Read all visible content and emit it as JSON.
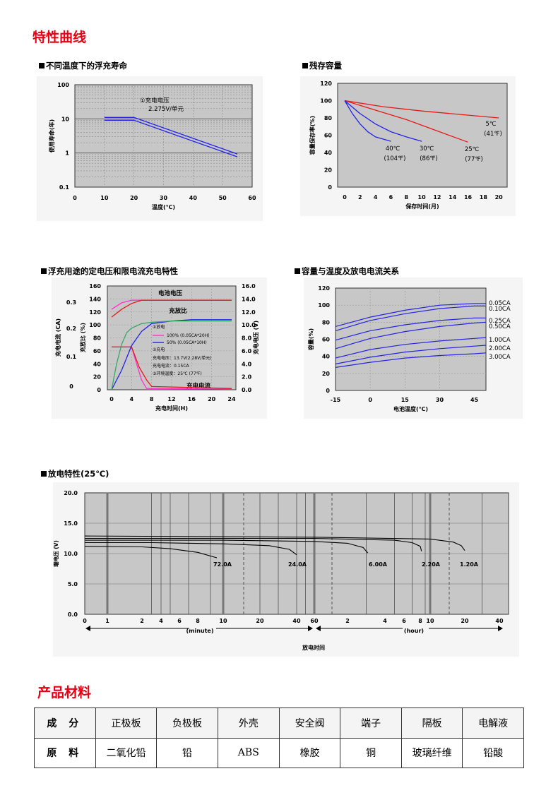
{
  "sections": {
    "curves": "特性曲线",
    "materials": "产品材料"
  },
  "colors": {
    "plot_bg": "#c7c7c7",
    "panel_bg": "#f5f5f5",
    "blue": "#2323e6",
    "red": "#e61919",
    "pink": "#ff33cc",
    "green": "#33aa66",
    "section": "#e60012"
  },
  "chart_data": [
    {
      "id": "float_life",
      "type": "line",
      "title": "不同温度下的浮充寿命",
      "xlabel": "温度(℃)",
      "ylabel": "使用寿命(年)",
      "xlim": [
        0,
        60
      ],
      "ylim": [
        0.1,
        100
      ],
      "yscale": "log",
      "xticks": [
        "0",
        "10",
        "20",
        "30",
        "40",
        "50",
        "60"
      ],
      "yticks": [
        "0.1",
        "1",
        "10",
        "100"
      ],
      "annotation": [
        "①充电电压",
        "2.275V/单元"
      ],
      "series": [
        {
          "x": [
            10,
            20,
            55
          ],
          "y": [
            10,
            10,
            0.85
          ]
        }
      ]
    },
    {
      "id": "residual",
      "type": "line",
      "title": "残存容量",
      "xlabel": "保存时间(月)",
      "ylabel": "容量保存率(%)",
      "xlim": [
        0,
        22
      ],
      "ylim": [
        0,
        120
      ],
      "xticks": [
        "0",
        "2",
        "4",
        "6",
        "8",
        "10",
        "12",
        "14",
        "16",
        "18",
        "20"
      ],
      "yticks": [
        "0",
        "20",
        "40",
        "60",
        "80",
        "100",
        "120"
      ],
      "series": [
        {
          "name": "5℃",
          "name2": "(41℉)",
          "color": "red",
          "x": [
            0,
            5,
            10,
            15,
            20
          ],
          "y": [
            100,
            93,
            88,
            84,
            80
          ]
        },
        {
          "name": "25℃",
          "name2": "(77℉)",
          "color": "red",
          "x": [
            0,
            4,
            8,
            12,
            16
          ],
          "y": [
            100,
            89,
            78,
            65,
            52
          ]
        },
        {
          "name": "30℃",
          "name2": "(86℉)",
          "color": "blue",
          "x": [
            0,
            2,
            4,
            6,
            8,
            10
          ],
          "y": [
            100,
            85,
            73,
            64,
            58,
            53
          ]
        },
        {
          "name": "40℃",
          "name2": "(104℉)",
          "color": "blue",
          "x": [
            0,
            1,
            2,
            3,
            4,
            6
          ],
          "y": [
            100,
            85,
            73,
            64,
            58,
            53
          ]
        }
      ]
    },
    {
      "id": "charge",
      "type": "line",
      "title": "浮充用途的定电压和限电流充电特性",
      "xlabel": "充电时间(H)",
      "ylabel_left1": "充电电流 (CA)",
      "ylabel_left2": "充放比 (%)",
      "ylabel_right": "充电电压 (V)",
      "xlim": [
        0,
        24
      ],
      "xticks": [
        "0",
        "4",
        "8",
        "12",
        "16",
        "20",
        "24"
      ],
      "yticks_pct": [
        "0",
        "20",
        "40",
        "60",
        "80",
        "100",
        "120",
        "140",
        "160"
      ],
      "yticks_v": [
        "0.0",
        "2.0",
        "4.0",
        "6.0",
        "8.0",
        "10.0",
        "12.0",
        "14.0",
        "16.0"
      ],
      "yticks_ca": [
        "0",
        "0.1",
        "0.2",
        "0.3"
      ],
      "labels": {
        "voltage": "电池电压",
        "ratio": "充放比",
        "current": "充电电流"
      },
      "legend": [
        "①放电",
        "100% (0.05CA*20H)",
        "50% (0.05CA*10H)",
        "②充电",
        "充电电压：13.7V(2.28V/单元)",
        "充电电流：0.15CA",
        "③环境温度：25℃ (77℉)"
      ],
      "series": [
        {
          "name": "voltage_100",
          "color": "pink",
          "x": [
            0,
            2,
            4,
            24
          ],
          "y": [
            124,
            134,
            138,
            138
          ]
        },
        {
          "name": "voltage_50",
          "color": "red",
          "x": [
            0,
            2,
            4,
            6,
            24
          ],
          "y": [
            112,
            124,
            133,
            138,
            138
          ]
        },
        {
          "name": "current_100",
          "color": "pink",
          "x": [
            0,
            4,
            5,
            6,
            7,
            24
          ],
          "y": [
            66,
            66,
            40,
            15,
            2,
            1
          ]
        },
        {
          "name": "current_50",
          "color": "red",
          "x": [
            0,
            4,
            5.5,
            7,
            8,
            24
          ],
          "y": [
            66,
            66,
            35,
            15,
            5,
            2
          ]
        },
        {
          "name": "ratio_100",
          "color": "blue",
          "x": [
            0,
            2,
            4,
            6,
            8,
            12,
            16,
            24
          ],
          "y": [
            0,
            30,
            68,
            90,
            102,
            106,
            108,
            108
          ]
        },
        {
          "name": "ratio_50",
          "color": "green",
          "x": [
            0,
            1,
            2,
            3,
            4,
            6,
            8,
            12,
            24
          ],
          "y": [
            0,
            40,
            70,
            88,
            95,
            102,
            104,
            106,
            106
          ]
        }
      ]
    },
    {
      "id": "cap_temp",
      "type": "line",
      "title": "容量与温度及放电电流关系",
      "xlabel": "电池温度(℃)",
      "ylabel": "容量(%)",
      "xlim": [
        -15,
        50
      ],
      "ylim": [
        0,
        120
      ],
      "xticks": [
        "-15",
        "0",
        "15",
        "30",
        "45"
      ],
      "yticks": [
        "0",
        "20",
        "40",
        "60",
        "80",
        "100",
        "120"
      ],
      "series": [
        {
          "name": "0.05CA",
          "x": [
            -15,
            0,
            15,
            30,
            45,
            50
          ],
          "y": [
            75,
            86,
            94,
            100,
            102,
            102
          ]
        },
        {
          "name": "0.10CA",
          "x": [
            -15,
            0,
            15,
            30,
            45,
            50
          ],
          "y": [
            70,
            82,
            90,
            96,
            99,
            99
          ]
        },
        {
          "name": "0.25CA",
          "x": [
            -15,
            0,
            15,
            30,
            45,
            50
          ],
          "y": [
            59,
            70,
            77,
            82,
            85,
            85
          ]
        },
        {
          "name": "0.50CA",
          "x": [
            -15,
            0,
            15,
            30,
            45,
            50
          ],
          "y": [
            49,
            61,
            69,
            75,
            79,
            80
          ]
        },
        {
          "name": "1.00CA",
          "x": [
            -15,
            0,
            15,
            30,
            45,
            50
          ],
          "y": [
            38,
            48,
            54,
            58,
            61,
            62
          ]
        },
        {
          "name": "2.00CA",
          "x": [
            -15,
            0,
            15,
            30,
            45,
            50
          ],
          "y": [
            31,
            39,
            45,
            49,
            52,
            53
          ]
        },
        {
          "name": "3.00CA",
          "x": [
            -15,
            0,
            15,
            30,
            45,
            50
          ],
          "y": [
            27,
            33,
            38,
            41,
            43,
            44
          ]
        }
      ]
    },
    {
      "id": "discharge",
      "type": "line",
      "title": "放电特性(25℃)",
      "xlabel": "放电时间",
      "ylabel": "端电压 (V)",
      "ylim": [
        0,
        20
      ],
      "yticks": [
        "0.0",
        "5.0",
        "10.0",
        "15.0",
        "20.0"
      ],
      "xticks_min": [
        "0",
        "1",
        "2",
        "4",
        "6",
        "8",
        "10",
        "20",
        "40",
        "60"
      ],
      "xticks_hr": [
        "2",
        "4",
        "6",
        "8",
        "10",
        "20",
        "40"
      ],
      "unit_min": "(minute)",
      "unit_hr": "(hour)",
      "series": [
        {
          "name": "72.0A",
          "x_min": [
            0,
            2,
            5,
            8,
            9.5
          ],
          "y": [
            11.2,
            11.1,
            10.8,
            10.2,
            9.3
          ]
        },
        {
          "name": "24.0A",
          "x_min": [
            0,
            3,
            10,
            25,
            36,
            40
          ],
          "y": [
            11.8,
            11.8,
            11.6,
            11.3,
            10.7,
            9.8
          ]
        },
        {
          "name": "6.00A",
          "x_min": [
            0,
            10,
            60,
            120,
            170,
            185
          ],
          "y": [
            12.2,
            12.2,
            12.0,
            11.7,
            11.0,
            10.1
          ]
        },
        {
          "name": "2.20A",
          "x_min": [
            0,
            60,
            300,
            420,
            480,
            495
          ],
          "y": [
            12.5,
            12.5,
            12.2,
            11.8,
            11.2,
            10.4
          ]
        },
        {
          "name": "1.20A",
          "x_min": [
            0,
            60,
            600,
            1000,
            1140,
            1200
          ],
          "y": [
            12.9,
            12.7,
            12.4,
            11.9,
            11.3,
            10.5
          ]
        }
      ]
    }
  ],
  "materials": {
    "headers": [
      "成 分",
      "正极板",
      "负极板",
      "外壳",
      "安全阀",
      "端子",
      "隔板",
      "电解液"
    ],
    "values": [
      "原 料",
      "二氧化铅",
      "铅",
      "ABS",
      "橡胶",
      "铜",
      "玻璃纤维",
      "铅酸"
    ]
  }
}
